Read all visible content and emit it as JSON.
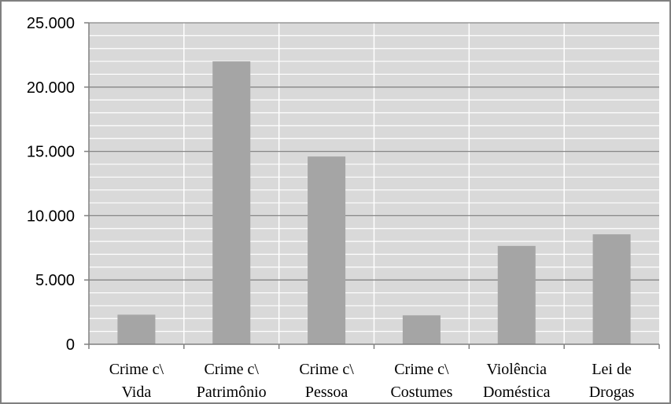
{
  "chart_data": {
    "type": "bar",
    "categories": [
      [
        "Crime c\\",
        "Vida"
      ],
      [
        "Crime c\\",
        "Patrimônio"
      ],
      [
        "Crime c\\",
        "Pessoa"
      ],
      [
        "Crime c\\",
        "Costumes"
      ],
      [
        "Violência",
        "Doméstica"
      ],
      [
        "Lei de",
        "Drogas"
      ]
    ],
    "values": [
      2300,
      22000,
      14600,
      2250,
      7650,
      8550
    ],
    "title": "",
    "xlabel": "",
    "ylabel": "",
    "ylim": [
      0,
      25000
    ],
    "yticks": [
      {
        "value": 0,
        "label": "0"
      },
      {
        "value": 5000,
        "label": "5.000"
      },
      {
        "value": 10000,
        "label": "10.000"
      },
      {
        "value": 15000,
        "label": "15.000"
      },
      {
        "value": 20000,
        "label": "20.000"
      },
      {
        "value": 25000,
        "label": "25.000"
      }
    ],
    "minor_grid_step": 1000,
    "grid": true,
    "legend": "none",
    "colors": {
      "plot_background": "#d9d9d9",
      "bar": "#a5a5a5",
      "major_grid": "#868686",
      "minor_grid": "#ffffff",
      "border": "#808080"
    }
  }
}
